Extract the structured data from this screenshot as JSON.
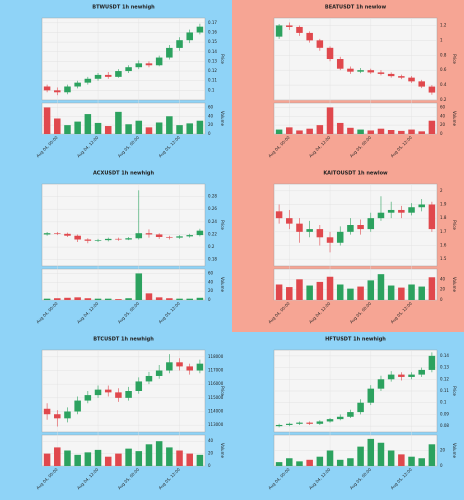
{
  "chart_data": [
    {
      "type": "candlestick",
      "title": "BTWUSDT 1h newhigh",
      "background": "#8fd3f7",
      "up_color": "#2ca25f",
      "down_color": "#e0484d",
      "ylabel": "Price",
      "vlabel": "Volume",
      "open": [
        0.104,
        0.1,
        0.098,
        0.104,
        0.108,
        0.112,
        0.116,
        0.114,
        0.12,
        0.124,
        0.128,
        0.126,
        0.134,
        0.144,
        0.152,
        0.16
      ],
      "high": [
        0.106,
        0.103,
        0.106,
        0.11,
        0.114,
        0.118,
        0.119,
        0.122,
        0.126,
        0.131,
        0.13,
        0.136,
        0.147,
        0.155,
        0.163,
        0.169
      ],
      "low": [
        0.098,
        0.095,
        0.096,
        0.102,
        0.106,
        0.11,
        0.112,
        0.113,
        0.118,
        0.122,
        0.124,
        0.125,
        0.132,
        0.141,
        0.149,
        0.158
      ],
      "close": [
        0.1,
        0.098,
        0.104,
        0.108,
        0.112,
        0.116,
        0.114,
        0.12,
        0.124,
        0.128,
        0.126,
        0.134,
        0.144,
        0.152,
        0.16,
        0.166
      ],
      "volume": [
        60,
        35,
        20,
        28,
        45,
        25,
        18,
        50,
        22,
        30,
        15,
        26,
        40,
        20,
        24,
        30
      ],
      "ylim": [
        0.09,
        0.175
      ],
      "yticks": [
        0.1,
        0.11,
        0.12,
        0.13,
        0.14,
        0.15,
        0.16,
        0.17
      ],
      "vlim": [
        0,
        70
      ],
      "vticks": [
        0,
        20,
        40,
        60
      ],
      "xticks": [
        {
          "value": 1,
          "label": "Aug 04, 00:00"
        },
        {
          "value": 5,
          "label": "Aug 04, 12:00"
        },
        {
          "value": 9,
          "label": "Aug 05, 00:00"
        },
        {
          "value": 13,
          "label": "Aug 05, 12:00"
        }
      ]
    },
    {
      "type": "candlestick",
      "title": "BEATUSDT 1h newlow",
      "background": "#f6a594",
      "up_color": "#2ca25f",
      "down_color": "#e0484d",
      "ylabel": "Price",
      "vlabel": "Volume",
      "open": [
        1.05,
        1.2,
        1.18,
        1.1,
        1.0,
        0.9,
        0.75,
        0.62,
        0.58,
        0.6,
        0.57,
        0.55,
        0.52,
        0.5,
        0.45,
        0.38
      ],
      "high": [
        1.22,
        1.24,
        1.2,
        1.12,
        1.02,
        0.92,
        0.78,
        0.65,
        0.63,
        0.62,
        0.6,
        0.57,
        0.54,
        0.52,
        0.47,
        0.4
      ],
      "low": [
        1.02,
        1.14,
        1.06,
        0.97,
        0.86,
        0.72,
        0.6,
        0.55,
        0.56,
        0.55,
        0.53,
        0.5,
        0.48,
        0.43,
        0.36,
        0.27
      ],
      "close": [
        1.2,
        1.18,
        1.1,
        1.0,
        0.9,
        0.75,
        0.62,
        0.58,
        0.6,
        0.57,
        0.55,
        0.52,
        0.5,
        0.45,
        0.38,
        0.3
      ],
      "volume": [
        10,
        15,
        8,
        12,
        20,
        60,
        25,
        14,
        10,
        8,
        12,
        9,
        7,
        10,
        6,
        30
      ],
      "ylim": [
        0.2,
        1.3
      ],
      "yticks": [
        0.2,
        0.4,
        0.6,
        0.8,
        1.0,
        1.2
      ],
      "vlim": [
        0,
        70
      ],
      "vticks": [
        0,
        20,
        40,
        60
      ],
      "xticks": [
        {
          "value": 1,
          "label": "Aug 04, 00:00"
        },
        {
          "value": 5,
          "label": "Aug 04, 12:00"
        },
        {
          "value": 9,
          "label": "Aug 05, 00:00"
        },
        {
          "value": 13,
          "label": "Aug 05, 12:00"
        }
      ]
    },
    {
      "type": "candlestick",
      "title": "ACXUSDT 1h newhigh",
      "background": "#8fd3f7",
      "up_color": "#2ca25f",
      "down_color": "#e0484d",
      "ylabel": "Price",
      "vlabel": "Volume",
      "open": [
        0.22,
        0.222,
        0.221,
        0.218,
        0.212,
        0.21,
        0.211,
        0.213,
        0.212,
        0.214,
        0.222,
        0.22,
        0.216,
        0.215,
        0.217,
        0.219
      ],
      "high": [
        0.224,
        0.224,
        0.223,
        0.22,
        0.214,
        0.213,
        0.215,
        0.215,
        0.216,
        0.29,
        0.228,
        0.222,
        0.218,
        0.219,
        0.221,
        0.229
      ],
      "low": [
        0.218,
        0.219,
        0.216,
        0.208,
        0.206,
        0.208,
        0.209,
        0.21,
        0.211,
        0.212,
        0.215,
        0.213,
        0.212,
        0.213,
        0.215,
        0.217
      ],
      "close": [
        0.222,
        0.221,
        0.218,
        0.212,
        0.21,
        0.211,
        0.213,
        0.212,
        0.214,
        0.222,
        0.22,
        0.216,
        0.215,
        0.217,
        0.219,
        0.226
      ],
      "volume": [
        3,
        4,
        5,
        6,
        4,
        3,
        3,
        2,
        4,
        60,
        15,
        6,
        4,
        3,
        3,
        5
      ],
      "ylim": [
        0.17,
        0.3
      ],
      "yticks": [
        0.18,
        0.2,
        0.22,
        0.24,
        0.26,
        0.28
      ],
      "vlim": [
        0,
        70
      ],
      "vticks": [
        0,
        20,
        40,
        60
      ],
      "xticks": [
        {
          "value": 1,
          "label": "Aug 04, 00:00"
        },
        {
          "value": 5,
          "label": "Aug 04, 12:00"
        },
        {
          "value": 9,
          "label": "Aug 05, 00:00"
        },
        {
          "value": 13,
          "label": "Aug 05, 12:00"
        }
      ]
    },
    {
      "type": "candlestick",
      "title": "KAITOUSDT 1h newlow",
      "background": "#f6a594",
      "up_color": "#2ca25f",
      "down_color": "#e0484d",
      "ylabel": "Price",
      "vlabel": "Volume",
      "open": [
        1.85,
        1.8,
        1.76,
        1.7,
        1.72,
        1.66,
        1.62,
        1.7,
        1.75,
        1.72,
        1.8,
        1.84,
        1.86,
        1.84,
        1.88,
        1.9
      ],
      "high": [
        1.9,
        1.86,
        1.8,
        1.78,
        1.75,
        1.7,
        1.74,
        1.8,
        1.79,
        1.84,
        1.96,
        1.92,
        1.89,
        1.91,
        1.94,
        1.92
      ],
      "low": [
        1.76,
        1.72,
        1.62,
        1.66,
        1.6,
        1.55,
        1.6,
        1.68,
        1.68,
        1.7,
        1.78,
        1.8,
        1.8,
        1.82,
        1.85,
        1.7
      ],
      "close": [
        1.8,
        1.76,
        1.7,
        1.72,
        1.66,
        1.62,
        1.7,
        1.75,
        1.72,
        1.8,
        1.84,
        1.86,
        1.84,
        1.88,
        1.9,
        1.72
      ],
      "volume": [
        30,
        25,
        40,
        28,
        35,
        45,
        30,
        22,
        26,
        38,
        50,
        28,
        24,
        30,
        26,
        44
      ],
      "ylim": [
        1.45,
        2.05
      ],
      "yticks": [
        1.5,
        1.6,
        1.7,
        1.8,
        1.9,
        2.0
      ],
      "vlim": [
        0,
        60
      ],
      "vticks": [
        0,
        20,
        40
      ],
      "xticks": [
        {
          "value": 1,
          "label": "Aug 04, 00:00"
        },
        {
          "value": 5,
          "label": "Aug 04, 12:00"
        },
        {
          "value": 9,
          "label": "Aug 05, 00:00"
        },
        {
          "value": 13,
          "label": "Aug 05, 12:00"
        }
      ]
    },
    {
      "type": "candlestick",
      "title": "BTCUSDT 1h newhigh",
      "background": "#8fd3f7",
      "up_color": "#2ca25f",
      "down_color": "#e0484d",
      "ylabel": "Price",
      "vlabel": "Volume",
      "open": [
        114200,
        113800,
        113500,
        114000,
        114800,
        115200,
        115600,
        115400,
        115000,
        115500,
        116200,
        116600,
        117000,
        117600,
        117300,
        117000
      ],
      "high": [
        114600,
        114100,
        114300,
        115100,
        115500,
        115900,
        115900,
        115700,
        115800,
        116500,
        116900,
        117400,
        118200,
        117900,
        117500,
        117800
      ],
      "low": [
        113400,
        112900,
        113200,
        113800,
        114600,
        115000,
        115100,
        114700,
        114800,
        115300,
        116000,
        116400,
        116800,
        117000,
        116700,
        116800
      ],
      "close": [
        113800,
        113500,
        114000,
        114800,
        115200,
        115600,
        115400,
        115000,
        115500,
        116200,
        116600,
        117000,
        117600,
        117300,
        117000,
        117500
      ],
      "volume": [
        20,
        30,
        25,
        18,
        22,
        26,
        15,
        20,
        28,
        24,
        35,
        40,
        30,
        25,
        20,
        18
      ],
      "ylim": [
        112500,
        118500
      ],
      "yticks": [
        113000,
        114000,
        115000,
        116000,
        117000,
        118000
      ],
      "vlim": [
        0,
        50
      ],
      "vticks": [
        0,
        20,
        40
      ],
      "xticks": [
        {
          "value": 1,
          "label": "Aug 04, 00:00"
        },
        {
          "value": 5,
          "label": "Aug 04, 12:00"
        },
        {
          "value": 9,
          "label": "Aug 05, 00:00"
        },
        {
          "value": 13,
          "label": "Aug 05, 12:00"
        }
      ]
    },
    {
      "type": "candlestick",
      "title": "HFTUSDT 1h newhigh",
      "background": "#8fd3f7",
      "up_color": "#2ca25f",
      "down_color": "#e0484d",
      "ylabel": "Price",
      "vlabel": "Volume",
      "open": [
        0.08,
        0.081,
        0.082,
        0.083,
        0.082,
        0.084,
        0.086,
        0.088,
        0.092,
        0.1,
        0.112,
        0.12,
        0.124,
        0.122,
        0.124,
        0.128
      ],
      "high": [
        0.082,
        0.083,
        0.084,
        0.084,
        0.085,
        0.087,
        0.09,
        0.094,
        0.103,
        0.115,
        0.123,
        0.127,
        0.126,
        0.126,
        0.13,
        0.143
      ],
      "low": [
        0.079,
        0.08,
        0.081,
        0.081,
        0.081,
        0.083,
        0.085,
        0.087,
        0.09,
        0.098,
        0.11,
        0.118,
        0.119,
        0.12,
        0.122,
        0.126
      ],
      "close": [
        0.081,
        0.082,
        0.083,
        0.082,
        0.084,
        0.086,
        0.088,
        0.092,
        0.1,
        0.112,
        0.12,
        0.124,
        0.122,
        0.124,
        0.128,
        0.14
      ],
      "volume": [
        5,
        10,
        6,
        8,
        12,
        20,
        8,
        10,
        25,
        35,
        30,
        20,
        15,
        12,
        10,
        28
      ],
      "ylim": [
        0.075,
        0.145
      ],
      "yticks": [
        0.08,
        0.09,
        0.1,
        0.11,
        0.12,
        0.13,
        0.14
      ],
      "vlim": [
        0,
        40
      ],
      "vticks": [
        0,
        20
      ],
      "xticks": [
        {
          "value": 1,
          "label": "Aug 04, 00:00"
        },
        {
          "value": 5,
          "label": "Aug 04, 12:00"
        },
        {
          "value": 9,
          "label": "Aug 05, 00:00"
        },
        {
          "value": 13,
          "label": "Aug 05, 12:00"
        }
      ]
    }
  ]
}
